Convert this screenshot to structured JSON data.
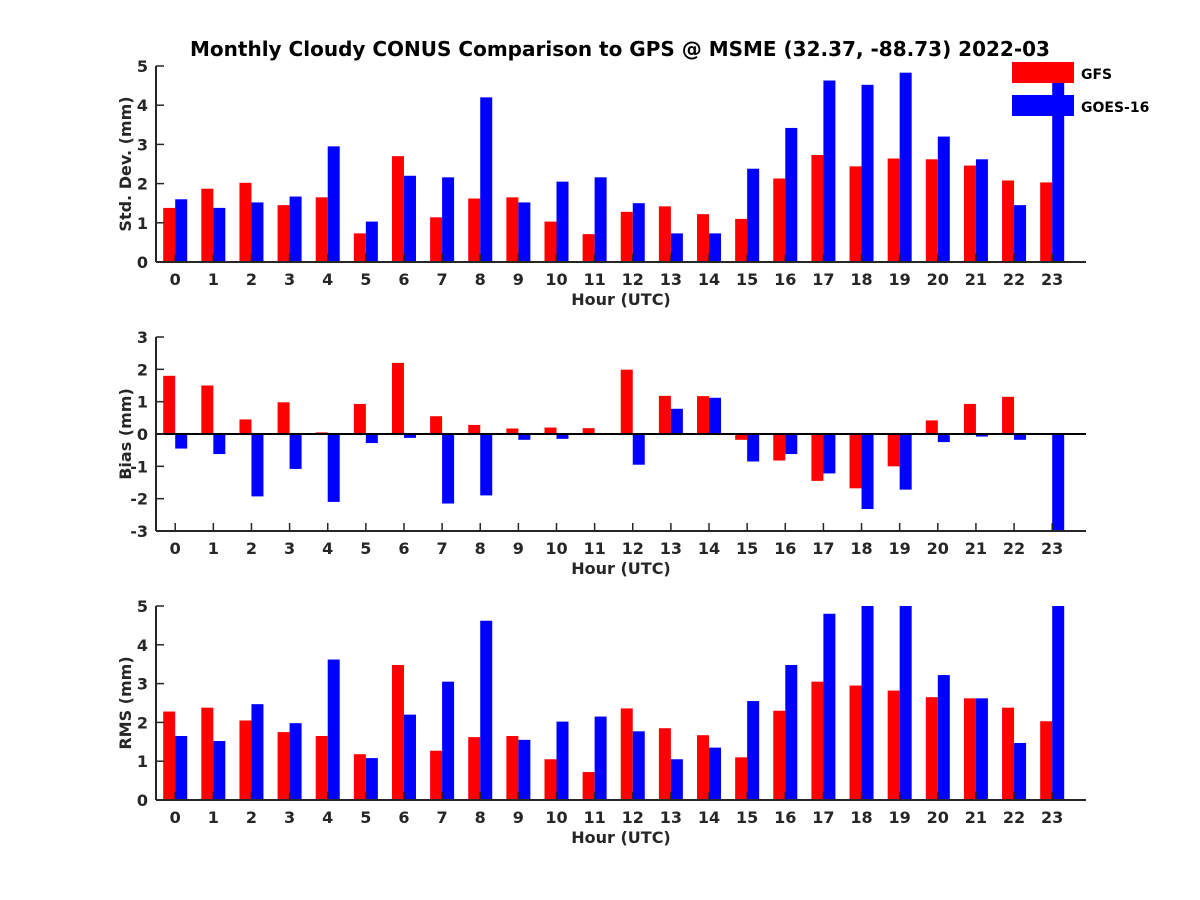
{
  "title": "Monthly Cloudy CONUS Comparison to GPS @ MSME (32.37, -88.73) 2022-03",
  "colors": {
    "GFS": "#ff0000",
    "GOES-16": "#0000ff"
  },
  "legend": [
    {
      "name": "GFS",
      "color": "#ff0000"
    },
    {
      "name": "GOES-16",
      "color": "#0000ff"
    }
  ],
  "chart_data": [
    {
      "type": "bar",
      "categories": [
        "0",
        "1",
        "2",
        "3",
        "4",
        "5",
        "6",
        "7",
        "8",
        "9",
        "10",
        "11",
        "12",
        "13",
        "14",
        "15",
        "16",
        "17",
        "18",
        "19",
        "20",
        "21",
        "22",
        "23"
      ],
      "xlabel": "Hour (UTC)",
      "ylabel": "Std. Dev. (mm)",
      "ylim": [
        0,
        5
      ],
      "yticks": [
        0,
        1,
        2,
        3,
        4,
        5
      ],
      "series": [
        {
          "name": "GFS",
          "values": [
            1.38,
            1.87,
            2.02,
            1.45,
            1.65,
            0.73,
            2.7,
            1.14,
            1.62,
            1.65,
            1.03,
            0.71,
            1.28,
            1.42,
            1.22,
            1.1,
            2.13,
            2.73,
            2.44,
            2.64,
            2.62,
            2.46,
            2.08,
            2.03
          ]
        },
        {
          "name": "GOES-16",
          "values": [
            1.6,
            1.38,
            1.52,
            1.67,
            2.95,
            1.03,
            2.2,
            2.16,
            4.2,
            1.52,
            2.05,
            2.16,
            1.5,
            0.73,
            0.73,
            2.38,
            3.42,
            4.63,
            4.52,
            4.83,
            3.2,
            2.62,
            1.45,
            4.9
          ]
        }
      ]
    },
    {
      "type": "bar",
      "categories": [
        "0",
        "1",
        "2",
        "3",
        "4",
        "5",
        "6",
        "7",
        "8",
        "9",
        "10",
        "11",
        "12",
        "13",
        "14",
        "15",
        "16",
        "17",
        "18",
        "19",
        "20",
        "21",
        "22",
        "23"
      ],
      "xlabel": "Hour (UTC)",
      "ylabel": "Bias (mm)",
      "ylim": [
        -3,
        3
      ],
      "yticks": [
        -3,
        -2,
        -1,
        0,
        1,
        2,
        3
      ],
      "series": [
        {
          "name": "GFS",
          "values": [
            1.8,
            1.5,
            0.45,
            0.98,
            0.05,
            0.93,
            2.2,
            0.55,
            0.28,
            0.17,
            0.2,
            0.18,
            1.99,
            1.18,
            1.17,
            -0.18,
            -0.82,
            -1.45,
            -1.68,
            -1.0,
            0.42,
            0.93,
            1.15,
            0
          ]
        },
        {
          "name": "GOES-16",
          "values": [
            -0.45,
            -0.62,
            -1.93,
            -1.08,
            -2.1,
            -0.28,
            -0.12,
            -2.15,
            -1.9,
            -0.18,
            -0.15,
            0,
            -0.95,
            0.78,
            1.12,
            -0.85,
            -0.62,
            -1.22,
            -2.32,
            -1.72,
            -0.25,
            -0.08,
            -0.18,
            -3
          ]
        }
      ]
    },
    {
      "type": "bar",
      "categories": [
        "0",
        "1",
        "2",
        "3",
        "4",
        "5",
        "6",
        "7",
        "8",
        "9",
        "10",
        "11",
        "12",
        "13",
        "14",
        "15",
        "16",
        "17",
        "18",
        "19",
        "20",
        "21",
        "22",
        "23"
      ],
      "xlabel": "Hour (UTC)",
      "ylabel": "RMS (mm)",
      "ylim": [
        0,
        5
      ],
      "yticks": [
        0,
        1,
        2,
        3,
        4,
        5
      ],
      "series": [
        {
          "name": "GFS",
          "values": [
            2.28,
            2.38,
            2.05,
            1.75,
            1.65,
            1.18,
            3.48,
            1.27,
            1.62,
            1.65,
            1.05,
            0.72,
            2.36,
            1.85,
            1.67,
            1.1,
            2.3,
            3.05,
            2.95,
            2.82,
            2.65,
            2.62,
            2.38,
            2.03
          ]
        },
        {
          "name": "GOES-16",
          "values": [
            1.65,
            1.52,
            2.47,
            1.98,
            3.62,
            1.08,
            2.2,
            3.05,
            4.62,
            1.55,
            2.02,
            2.15,
            1.77,
            1.05,
            1.35,
            2.55,
            3.48,
            4.8,
            5.0,
            5.0,
            3.22,
            2.62,
            1.47,
            5.0
          ]
        }
      ]
    }
  ]
}
